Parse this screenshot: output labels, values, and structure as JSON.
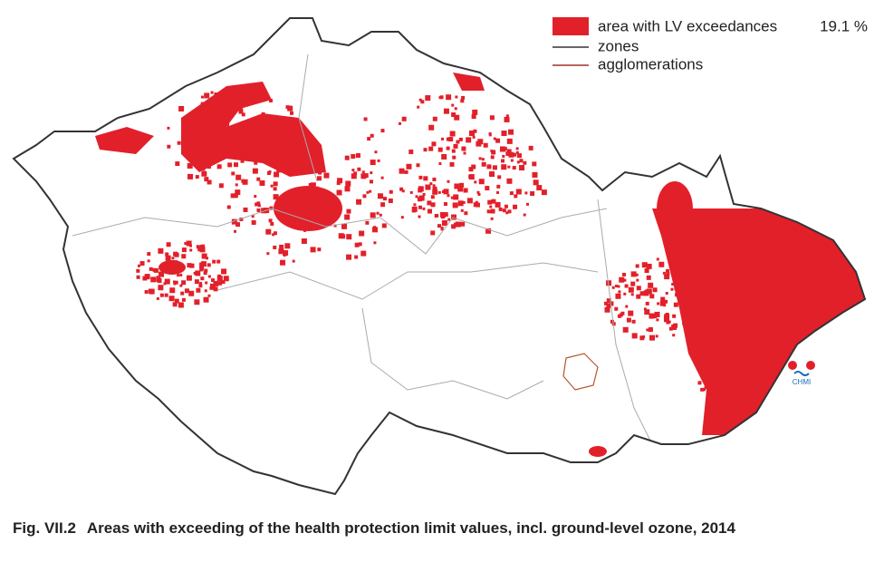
{
  "legend": {
    "items": [
      {
        "label": "area with LV exceedances",
        "value": "19.1 %"
      },
      {
        "label": "zones"
      },
      {
        "label": "agglomerations"
      }
    ]
  },
  "logo": {
    "label": "CHMI"
  },
  "caption": {
    "number": "Fig. VII.2",
    "text": "Areas with exceeding of the health protection limit values, incl. ground-level ozone, 2014"
  }
}
